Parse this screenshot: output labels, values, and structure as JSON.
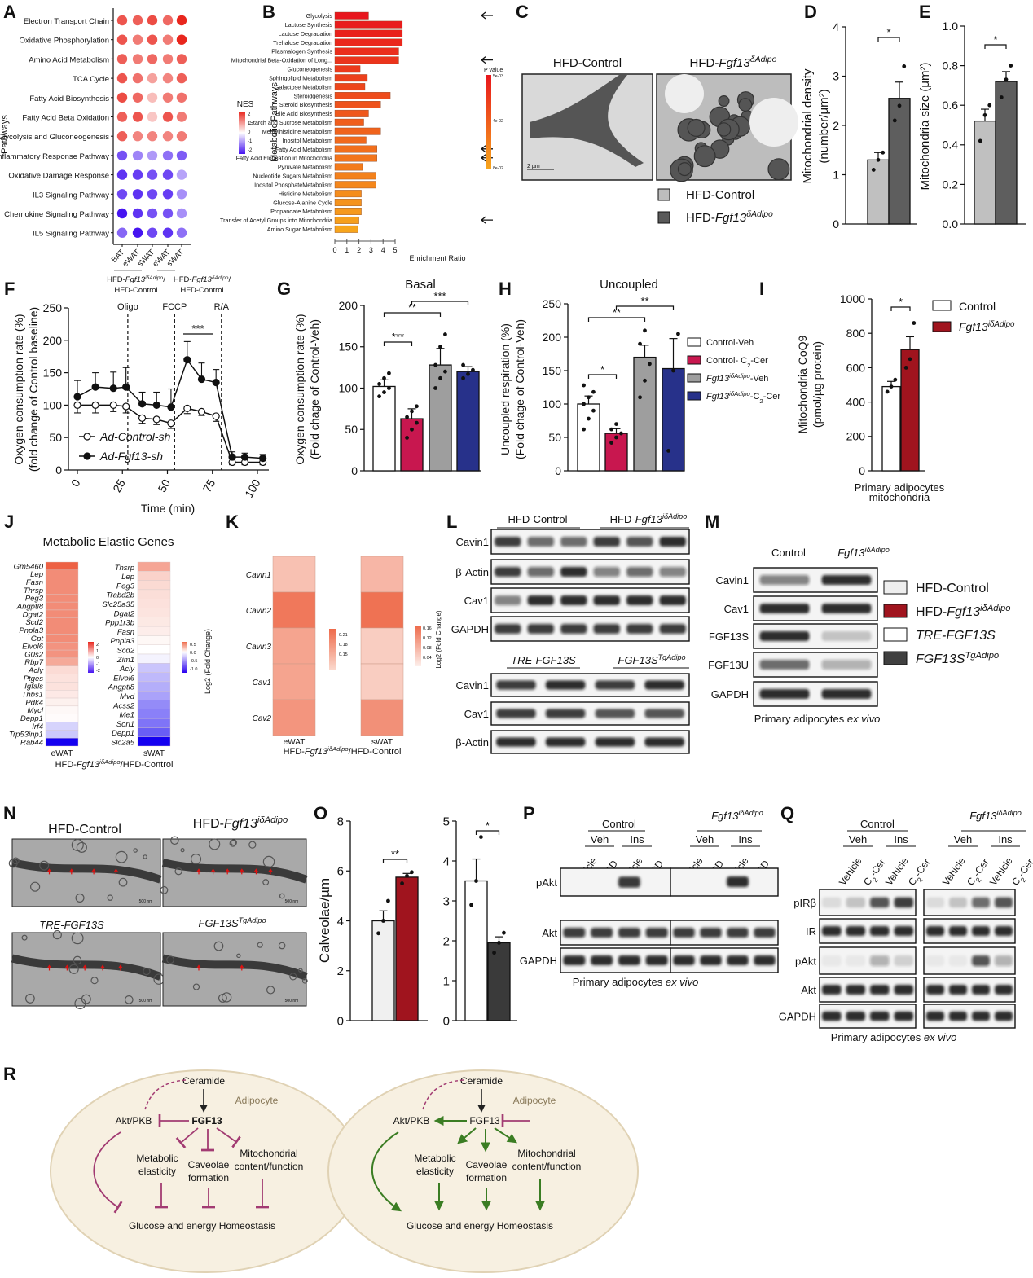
{
  "panels": [
    "A",
    "B",
    "C",
    "D",
    "E",
    "F",
    "G",
    "H",
    "I",
    "J",
    "K",
    "L",
    "M",
    "N",
    "O",
    "P",
    "Q",
    "R"
  ],
  "g": {
    "hfd": "HFD-",
    "fgf13": "Fgf13",
    "d": "δAdipo",
    "id": "iδAdipo",
    "ctrl": "HFD-Control",
    "tre": "TRE-FGF13S",
    "fgf13s": "FGF13S",
    "tg": "TgAdipo",
    "slash": "/",
    "ctrl2": "HFD-Control",
    "slashctrl": "/HFD-Control",
    "control": "Control"
  },
  "colors": {
    "red": "#e8261d",
    "blue": "#4614f0",
    "crimson": "#c8174f",
    "grey": "#9e9e9e",
    "navy": "#27318a",
    "darkred": "#a0141e",
    "dark": "#3d3d3d"
  },
  "chart_data": [
    {
      "id": "A",
      "type": "heatmap",
      "ylabel": "Pathways",
      "legend_title": "NES",
      "legend_ticks": [
        "2",
        "1",
        "0",
        "-1",
        "-2"
      ],
      "rows": [
        "Electron Transport Chain",
        "Oxidative Phosphorylation",
        "Amino Acid Metabolism",
        "TCA Cycle",
        "Fatty Acid Biosynthesis",
        "Fatty Acid Beta Oxidation",
        "Glycolysis and Gluconeogenesis",
        "Inflammatory Response Pathway",
        "Oxidative Damage Response",
        "IL3 Signaling Pathway",
        "Chemokine Signaling Pathway",
        "IL5 Signaling Pathway"
      ],
      "columns": [
        "BAT",
        "eWAT",
        "sWAT",
        "eWAT",
        "sWAT"
      ],
      "values": [
        [
          1.8,
          1.7,
          1.9,
          1.6,
          2.3
        ],
        [
          1.8,
          1.4,
          1.8,
          1.4,
          2.3
        ],
        [
          1.7,
          1.4,
          1.6,
          1.4,
          1.7
        ],
        [
          1.8,
          1.5,
          1.0,
          1.3,
          1.7
        ],
        [
          1.9,
          1.6,
          0.7,
          1.4,
          1.5
        ],
        [
          1.7,
          1.8,
          0.6,
          1.8,
          1.4
        ],
        [
          1.7,
          1.3,
          1.3,
          1.3,
          1.4
        ],
        [
          -1.7,
          -1.2,
          -1.0,
          -1.4,
          -1.6
        ],
        [
          -2.0,
          -1.9,
          -1.7,
          -1.8,
          -0.9
        ],
        [
          -1.8,
          -2.0,
          -1.8,
          -1.9,
          -1.1
        ],
        [
          -2.3,
          -2.0,
          -1.7,
          -1.7,
          -1.1
        ],
        [
          -1.5,
          -2.3,
          -1.8,
          -2.0,
          -1.4
        ]
      ]
    },
    {
      "id": "B",
      "type": "bar",
      "xlabel": "Enrichment Ratio",
      "ylabel": "Metabolic Pathways",
      "xticks": [
        0,
        1,
        2,
        3,
        4,
        5
      ],
      "legend_title": "P value",
      "legend_ticks": [
        "5e-03",
        "4e-02",
        "8e-02"
      ],
      "categories": [
        "Glycolysis",
        "Lactose Synthesis",
        "Lactose Degradation",
        "Trehalose Degradation",
        "Plasmalogen Synthesis",
        "Mitochondrial Beta-Oxidation of Long...",
        "Gluconeogenesis",
        "Sphingolipid Metabolism",
        "Galactose Metabolism",
        "Steroidgenesis",
        "Steroid Biosynthesis",
        "Bile Acid Biosynthesis",
        "Starch and Sucrose Metabolism",
        "Methylhistidine Metabolism",
        "Inositol Metabolism",
        "Fatty Acid Metabolism",
        "Fatty Acid Elongation in Mitochondria",
        "Pyruvate Metabolism",
        "Nucleotide Sugars Metabolism",
        "Inositol PhosphateMetabolism",
        "Histidine Metabolism",
        "Glucose-Alanine Cycle",
        "Propanoate Metabolism",
        "Transfer of Acetyl Groups into Mitochondria",
        "Amino Sugar Metabolism"
      ],
      "values": [
        2.8,
        5.6,
        5.6,
        5.6,
        5.3,
        5.3,
        2.1,
        2.7,
        2.5,
        4.6,
        3.8,
        2.8,
        2.4,
        3.8,
        2.6,
        3.5,
        3.5,
        2.3,
        3.4,
        3.4,
        2.2,
        2.2,
        2.2,
        2.0,
        1.9
      ],
      "arrows": [
        0,
        5,
        15,
        16,
        23
      ]
    },
    {
      "id": "D",
      "type": "bar",
      "ylabel": [
        "Mitochondrial density",
        "(number/μm²)"
      ],
      "ylim": [
        0,
        4
      ],
      "yticks": [
        "0",
        "1",
        "2",
        "3",
        "4"
      ],
      "values": [
        1.3,
        2.55
      ],
      "sem": [
        0.15,
        0.33
      ],
      "points": [
        [
          1.1,
          1.3,
          1.45
        ],
        [
          2.1,
          2.4,
          3.2
        ]
      ],
      "sig": [
        {
          "a": 0,
          "b": 1,
          "label": "*"
        }
      ]
    },
    {
      "id": "E",
      "type": "bar",
      "ylabel": "Mitochondria size (μm²)",
      "ylim": [
        0,
        1
      ],
      "yticks": [
        "0.0",
        "0.2",
        "0.4",
        "0.6",
        "0.8",
        "1.0"
      ],
      "values": [
        0.52,
        0.72
      ],
      "sem": [
        0.06,
        0.05
      ],
      "points": [
        [
          0.42,
          0.55,
          0.6
        ],
        [
          0.64,
          0.73,
          0.8
        ]
      ],
      "sig": [
        {
          "a": 0,
          "b": 1,
          "label": "*"
        }
      ]
    },
    {
      "id": "F",
      "type": "line",
      "xlabel": "Time (min)",
      "ylabel": [
        "Oxygen consumption rate (%)",
        "(fold change of Control baseline)"
      ],
      "xticks": [
        "0",
        "25",
        "50",
        "75",
        "100"
      ],
      "yticks": [
        "0",
        "50",
        "100",
        "150",
        "200",
        "250"
      ],
      "ylim": [
        0,
        250
      ],
      "xlim": [
        0,
        100
      ],
      "markers": [
        {
          "label": "Oligo",
          "t": 28
        },
        {
          "label": "FCCP",
          "t": 54
        },
        {
          "label": "R/A",
          "t": 80
        }
      ],
      "sig": "***",
      "x": [
        0,
        10,
        20,
        27,
        36,
        44,
        52,
        61,
        69,
        77,
        86,
        93,
        103
      ],
      "series": [
        {
          "name": "Ad-Control-sh",
          "values": [
            100,
            100,
            100,
            98,
            80,
            78,
            72,
            95,
            90,
            83,
            12,
            12,
            12
          ],
          "err": [
            12,
            12,
            10,
            10,
            8,
            8,
            8,
            8,
            6,
            8,
            4,
            4,
            4
          ]
        },
        {
          "name": "Ad-Fgf13-sh",
          "values": [
            113,
            128,
            126,
            128,
            102,
            100,
            97,
            170,
            140,
            135,
            20,
            20,
            18
          ],
          "err": [
            25,
            22,
            25,
            30,
            18,
            20,
            28,
            28,
            25,
            20,
            8,
            6,
            6
          ]
        }
      ]
    },
    {
      "id": "G",
      "type": "bar",
      "title": "Basal",
      "ylabel": [
        "Oxygen consumption rate (%)",
        "(Fold chage of Control-Veh)"
      ],
      "ylim": [
        0,
        200
      ],
      "yticks": [
        "0",
        "50",
        "100",
        "150",
        "200"
      ],
      "values": [
        102,
        63,
        128,
        120
      ],
      "sem": [
        8,
        12,
        20,
        6
      ],
      "points": [
        [
          90,
          95,
          100,
          105,
          112,
          118
        ],
        [
          40,
          50,
          58,
          65,
          72,
          78
        ],
        [
          100,
          112,
          120,
          128,
          150,
          165
        ],
        [
          112,
          117,
          122,
          128
        ]
      ],
      "sig": [
        {
          "a": 0,
          "b": 1,
          "label": "***"
        },
        {
          "a": 0,
          "b": 2,
          "label": "**"
        },
        {
          "a": 1,
          "b": 3,
          "label": "***"
        }
      ]
    },
    {
      "id": "H",
      "type": "bar",
      "title": "Uncoupled",
      "ylabel": [
        "Uncoupled respiration (%)",
        "(Fold chage of Control-Veh)"
      ],
      "ylim": [
        0,
        250
      ],
      "yticks": [
        "0",
        "50",
        "100",
        "150",
        "200",
        "250"
      ],
      "values": [
        100,
        56,
        170,
        153
      ],
      "sem": [
        12,
        7,
        18,
        45
      ],
      "points": [
        [
          62,
          78,
          90,
          100,
          110,
          118,
          128
        ],
        [
          42,
          50,
          56,
          62,
          70
        ],
        [
          110,
          135,
          160,
          190,
          210
        ],
        [
          30,
          150,
          205
        ]
      ],
      "sig": [
        {
          "a": 0,
          "b": 1,
          "label": "*"
        },
        {
          "a": 0,
          "b": 2,
          "label": "**"
        },
        {
          "a": 1,
          "b": 3,
          "label": "**"
        }
      ],
      "legend": [
        [
          "Control-Veh"
        ],
        [
          "Control- C",
          "2",
          "-Cer"
        ],
        [
          "Fgf13",
          "iδAdipo",
          "-Veh"
        ],
        [
          "Fgf13",
          "iδAdipo",
          "-C",
          "2",
          "-Cer"
        ]
      ]
    },
    {
      "id": "I",
      "type": "bar",
      "ylabel": [
        "Mitochondria CoQ9",
        "(pmol/µg protein)"
      ],
      "xlabel": [
        "Primary adipocytes",
        "mitochondria"
      ],
      "ylim": [
        0,
        1000
      ],
      "yticks": [
        "0",
        "200",
        "400",
        "600",
        "800",
        "1000"
      ],
      "values": [
        490,
        705
      ],
      "sem": [
        30,
        75
      ],
      "points": [
        [
          460,
          490,
          530
        ],
        [
          600,
          650,
          860
        ]
      ],
      "sig": [
        {
          "a": 0,
          "b": 1,
          "label": "*"
        }
      ],
      "legend": [
        "Control",
        "Fgf13",
        "iδAdipo"
      ]
    },
    {
      "id": "J",
      "type": "heatmap",
      "title": "Metabolic Elastic Genes",
      "legend_label": "Log2 (Fold Change)",
      "eWAT": {
        "label": "eWAT",
        "genes": [
          "Gm5460",
          "Lep",
          "Fasn",
          "Thrsp",
          "Peg3",
          "Angptl8",
          "Dgat2",
          "Scd2",
          "Pnpla3",
          "Gpt",
          "Elvol6",
          "G0s2",
          "Rbp7",
          "Acly",
          "Ptges",
          "Igfals",
          "Thbs1",
          "Pdk4",
          "Mycl",
          "Depp1",
          "Irf4",
          "Trp53inp1",
          "Rab44"
        ],
        "values": [
          2.2,
          1.6,
          1.6,
          1.6,
          1.6,
          1.6,
          1.6,
          1.6,
          1.6,
          1.6,
          1.5,
          1.5,
          1.2,
          0.5,
          0.4,
          0.4,
          0.3,
          0.2,
          0.1,
          0.05,
          -0.4,
          -0.5,
          -2.5
        ],
        "legend_ticks": [
          "2",
          "1",
          "0",
          "-1",
          "-2"
        ]
      },
      "sWAT": {
        "label": "sWAT",
        "genes": [
          "Thsrp",
          "Lep",
          "Peg3",
          "Trabd2b",
          "Slc25a35",
          "Dgat2",
          "Ppp1r3b",
          "Fasn",
          "Pnpla3",
          "Scd2",
          "Zim1",
          "Acly",
          "Elvol6",
          "Angptl8",
          "Mvd",
          "Acss2",
          "Me1",
          "Sorl1",
          "Depp1",
          "Slc2a5"
        ],
        "values": [
          0.6,
          0.3,
          0.25,
          0.22,
          0.2,
          0.18,
          0.15,
          0.12,
          0.05,
          0,
          -0.05,
          -0.25,
          -0.3,
          -0.35,
          -0.4,
          -0.5,
          -0.55,
          -0.6,
          -0.7,
          -1.1
        ],
        "legend_ticks": [
          "0.5",
          "0.0",
          "-0.5",
          "-1.0"
        ]
      }
    },
    {
      "id": "K",
      "type": "heatmap",
      "legend_label": "Log2 (Fold Change)",
      "genes": [
        "Cavin1",
        "Cavin2",
        "Cavin3",
        "Cav1",
        "Cav2"
      ],
      "eWAT": {
        "label": "eWAT",
        "values": [
          0.17,
          0.22,
          0.19,
          0.19,
          0.2
        ],
        "legend_ticks": [
          "0.21",
          "0.18",
          "0.15"
        ]
      },
      "sWAT": {
        "label": "sWAT",
        "values": [
          0.07,
          0.16,
          0.04,
          0.04,
          0.12
        ],
        "legend_ticks": [
          "0.16",
          "0.12",
          "0.08",
          "0.04"
        ]
      }
    },
    {
      "id": "O-left",
      "type": "bar",
      "ylabel": "Calveolae/µm",
      "ylim": [
        0,
        8
      ],
      "yticks": [
        "0",
        "2",
        "4",
        "6",
        "8"
      ],
      "values": [
        4.0,
        5.75
      ],
      "sem": [
        0.4,
        0.15
      ],
      "points": [
        [
          3.5,
          4.0,
          4.8
        ],
        [
          5.5,
          5.8,
          5.95
        ]
      ],
      "sig": [
        {
          "a": 0,
          "b": 1,
          "label": "**"
        }
      ]
    },
    {
      "id": "O-right",
      "type": "bar",
      "ylim": [
        0,
        5
      ],
      "yticks": [
        "0",
        "1",
        "2",
        "3",
        "4",
        "5"
      ],
      "values": [
        3.5,
        1.95
      ],
      "sem": [
        0.55,
        0.15
      ],
      "points": [
        [
          2.9,
          3.5,
          4.6
        ],
        [
          1.7,
          1.95,
          2.2
        ]
      ],
      "sig": [
        {
          "a": 0,
          "b": 1,
          "label": "*"
        }
      ]
    }
  ],
  "C": {
    "scale": "2 µm"
  },
  "L": {
    "rows1": [
      "Cavin1",
      "β-Actin",
      "Cav1",
      "GAPDH"
    ],
    "rows2": [
      "Cavin1",
      "Cav1",
      "β-Actin"
    ],
    "bands1": [
      [
        0.8,
        0.6,
        0.6,
        0.8,
        0.7,
        0.9
      ],
      [
        0.8,
        0.6,
        0.9,
        0.5,
        0.6,
        0.5
      ],
      [
        0.5,
        0.9,
        0.9,
        0.9,
        0.9,
        0.9
      ],
      [
        0.8,
        0.8,
        0.8,
        0.8,
        0.8,
        0.8
      ]
    ],
    "bands2": [
      [
        0.8,
        0.9,
        0.8,
        0.9
      ],
      [
        0.8,
        0.8,
        0.7,
        0.7
      ],
      [
        0.9,
        0.9,
        0.9,
        0.9
      ]
    ]
  },
  "M": {
    "rows": [
      "Cavin1",
      "Cav1",
      "FGF13S",
      "FGF13U",
      "GAPDH"
    ],
    "bands": [
      [
        0.5,
        0.9
      ],
      [
        0.9,
        0.9
      ],
      [
        0.9,
        0.2
      ],
      [
        0.6,
        0.3
      ],
      [
        0.9,
        0.9
      ]
    ],
    "caption": "Primary adipocytes ",
    "caption_i": "ex vivo"
  },
  "N": {
    "scale": "500 nm"
  },
  "P": {
    "veh": "Veh",
    "ins": "Ins",
    "lanes": [
      "Vehicle",
      "MβCD",
      "Vehicle",
      "MβCD",
      "Vehicle",
      "MβCD",
      "Vehicle",
      "MβCD"
    ],
    "rows": [
      "pAkt",
      "Akt",
      "GAPDH"
    ],
    "bands": [
      [
        0,
        0,
        0.85,
        0,
        0,
        0,
        0.9,
        0
      ],
      [
        0.8,
        0.8,
        0.8,
        0.8,
        0.8,
        0.8,
        0.8,
        0.8
      ],
      [
        0.9,
        0.9,
        0.9,
        0.9,
        0.9,
        0.9,
        0.9,
        0.9
      ]
    ]
  },
  "Q": {
    "lanes": [
      "Vehicle",
      "C",
      "2",
      "-Cer"
    ],
    "rows": [
      "pIRβ",
      "IR",
      "pAkt",
      "Akt",
      "GAPDH"
    ],
    "bands": [
      [
        0.1,
        0.2,
        0.7,
        0.8,
        0.1,
        0.2,
        0.6,
        0.7
      ],
      [
        0.9,
        0.9,
        0.9,
        0.9,
        0.9,
        0.9,
        0.9,
        0.9
      ],
      [
        0.05,
        0.05,
        0.3,
        0.15,
        0.05,
        0.05,
        0.7,
        0.3
      ],
      [
        0.9,
        0.9,
        0.9,
        0.9,
        0.9,
        0.9,
        0.9,
        0.9
      ],
      [
        0.9,
        0.9,
        0.9,
        0.9,
        0.9,
        0.9,
        0.9,
        0.9
      ]
    ]
  },
  "R": {
    "ceramide": "Ceramide",
    "adipocyte": "Adipocyte",
    "akt": "Akt/PKB",
    "fgf13": "FGF13",
    "me1": "Metabolic",
    "me2": "elasticity",
    "cf1": "Caveolae",
    "cf2": "formation",
    "mc1": "Mitochondrial",
    "mc2": "content/function",
    "glucose": "Glucose and energy Homeostasis"
  }
}
